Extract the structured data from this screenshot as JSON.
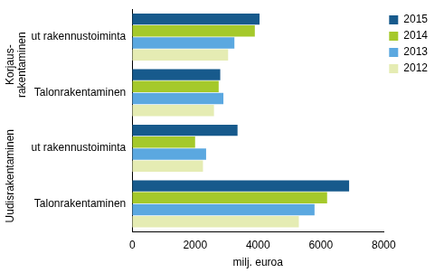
{
  "chart_data": {
    "type": "bar",
    "orientation": "horizontal",
    "categories": [
      "Erikoistunut rakennustoiminta",
      "Talonrakentaminen",
      "Erikoistunut rakennustoiminta",
      "Talonrakentaminen"
    ],
    "groups": [
      {
        "label": [
          "Korjaus-",
          "rakentaminen"
        ],
        "count": 2
      },
      {
        "label": [
          "Uudisrakentaminen"
        ],
        "count": 2
      }
    ],
    "series": [
      {
        "name": "2015",
        "color": "#175a8c",
        "values": [
          4050,
          2800,
          3350,
          6900
        ]
      },
      {
        "name": "2014",
        "color": "#a5c92b",
        "values": [
          3900,
          2750,
          2000,
          6200
        ]
      },
      {
        "name": "2013",
        "color": "#5ba8e0",
        "values": [
          3250,
          2900,
          2350,
          5800
        ]
      },
      {
        "name": "2012",
        "color": "#e5ecb3",
        "values": [
          3050,
          2600,
          2250,
          5300
        ]
      }
    ],
    "x_label": "milj. euroa",
    "xlim": [
      0,
      8000
    ],
    "xticks": [
      0,
      2000,
      4000,
      6000,
      8000
    ],
    "grid": false,
    "legend": "right"
  }
}
